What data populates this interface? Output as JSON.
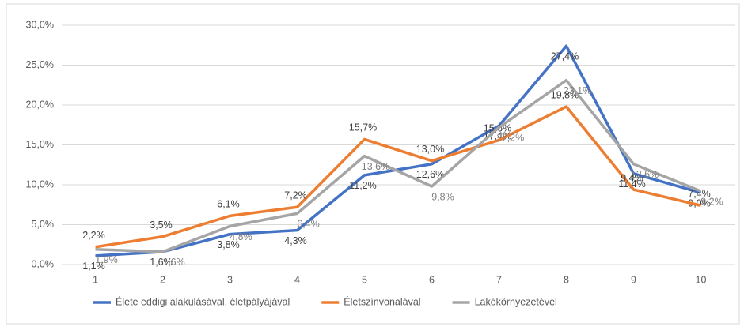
{
  "chart_data": {
    "type": "line",
    "categories": [
      "1",
      "2",
      "3",
      "4",
      "5",
      "6",
      "7",
      "8",
      "9",
      "10"
    ],
    "series": [
      {
        "name": "Élete eddigi alakulásával, életpályájával",
        "color": "#4472c4",
        "values": [
          1.1,
          1.6,
          3.8,
          4.3,
          11.2,
          12.6,
          17.4,
          27.4,
          11.4,
          9.0
        ],
        "value_labels": [
          "1,1%",
          "1,6%",
          "3,8%",
          "4,3%",
          "11,2%",
          "12,6%",
          "17,4%",
          "27,4%",
          "11,4%",
          "9,0%"
        ]
      },
      {
        "name": "Életszínvonalával",
        "color": "#ed7d31",
        "values": [
          2.2,
          3.5,
          6.1,
          7.2,
          15.7,
          13.0,
          15.6,
          19.8,
          9.4,
          7.4
        ],
        "value_labels": [
          "2,2%",
          "3,5%",
          "6,1%",
          "7,2%",
          "15,7%",
          "13,0%",
          "15,6%",
          "19,8%",
          "9,4%",
          "7,4%"
        ]
      },
      {
        "name": "Lakókörnyezetével",
        "color": "#a5a5a5",
        "values": [
          1.9,
          1.6,
          4.8,
          6.4,
          13.6,
          9.8,
          17.2,
          23.1,
          12.6,
          9.2
        ],
        "value_labels": [
          "1,9%",
          "1,6%",
          "4,8%",
          "6,4%",
          "13,6%",
          "9,8%",
          "17,2%",
          "23,1%",
          "12,6%",
          "9,2%"
        ]
      }
    ],
    "ylim": [
      0,
      30
    ],
    "yticks": [
      {
        "value": 0,
        "label": "0,0%"
      },
      {
        "value": 5,
        "label": "5,0%"
      },
      {
        "value": 10,
        "label": "10,0%"
      },
      {
        "value": 15,
        "label": "15,0%"
      },
      {
        "value": 20,
        "label": "20,0%"
      },
      {
        "value": 25,
        "label": "25,0%"
      },
      {
        "value": 30,
        "label": "30,0%"
      }
    ],
    "grid": true,
    "legend": "bottom"
  }
}
